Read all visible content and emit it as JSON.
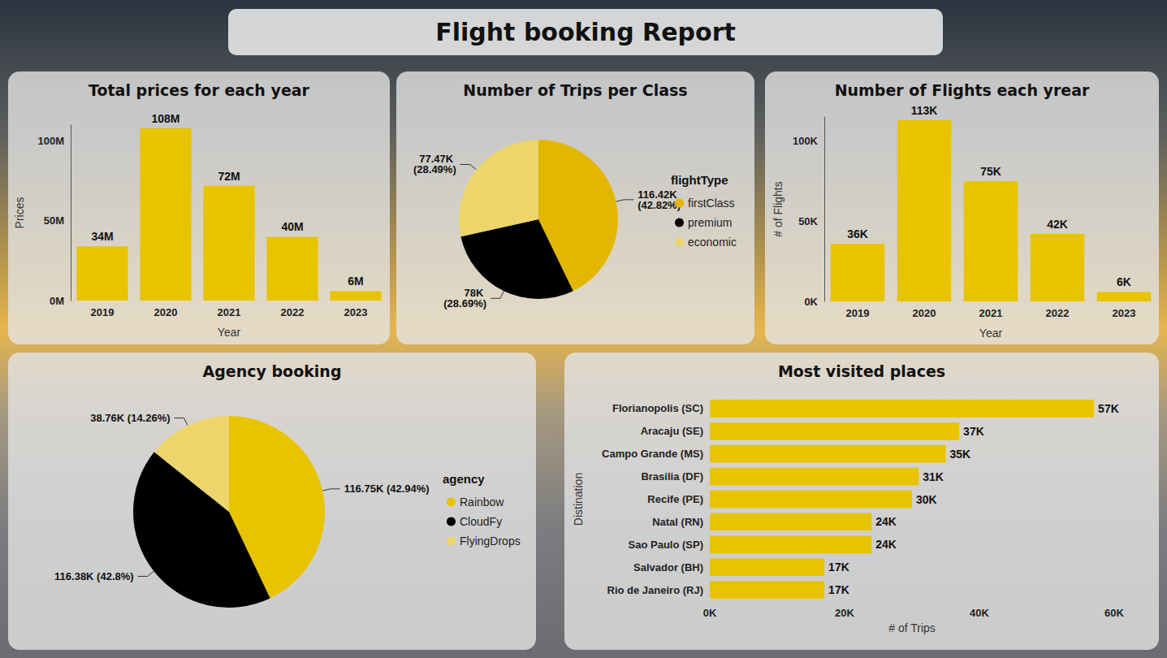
{
  "title": "Flight booking Report",
  "chart_data": [
    {
      "type": "bar",
      "title": "Total prices for each year",
      "x_label": "Year",
      "y_label": "Prices",
      "categories": [
        "2019",
        "2020",
        "2021",
        "2022",
        "2023"
      ],
      "values": [
        34000000,
        108000000,
        72000000,
        40000000,
        6000000
      ],
      "value_labels": [
        "34M",
        "108M",
        "72M",
        "40M",
        "6M"
      ],
      "color": "#E8C300",
      "ylim": [
        0,
        110000000
      ],
      "yticks": [
        {
          "value": 0,
          "label": "0M"
        },
        {
          "value": 50000000,
          "label": "50M"
        },
        {
          "value": 100000000,
          "label": "100M"
        }
      ],
      "grid": false,
      "data_labels": true
    },
    {
      "type": "pie",
      "title": "Number of Trips per Class",
      "legend_title": "flightType",
      "legend": "right",
      "categories": [
        "firstClass",
        "premium",
        "economic"
      ],
      "values": [
        116420,
        78000,
        77470
      ],
      "value_labels": [
        "116.42K (42.82%)",
        "78K (28.69%)",
        "77.47K (28.49%)"
      ],
      "colors": [
        "#E3B700",
        "#000000",
        "#EDD56C"
      ],
      "data_labels": true
    },
    {
      "type": "bar",
      "title": "Number of Flights each yrear",
      "x_label": "Year",
      "y_label": "# of Flights",
      "categories": [
        "2019",
        "2020",
        "2021",
        "2022",
        "2023"
      ],
      "values": [
        36000,
        113000,
        75000,
        42000,
        6000
      ],
      "value_labels": [
        "36K",
        "113K",
        "75K",
        "42K",
        "6K"
      ],
      "color": "#E8C300",
      "ylim": [
        0,
        115000
      ],
      "yticks": [
        {
          "value": 0,
          "label": "0K"
        },
        {
          "value": 50000,
          "label": "50K"
        },
        {
          "value": 100000,
          "label": "100K"
        }
      ],
      "grid": false,
      "data_labels": true
    },
    {
      "type": "pie",
      "title": "Agency booking",
      "legend_title": "agency",
      "legend": "right",
      "categories": [
        "Rainbow",
        "CloudFy",
        "FlyingDrops"
      ],
      "values": [
        116750,
        116380,
        38760
      ],
      "value_labels": [
        "116.75K (42.94%)",
        "116.38K (42.8%)",
        "38.76K (14.26%)"
      ],
      "colors": [
        "#E8C300",
        "#000000",
        "#EDD56C"
      ],
      "data_labels": true
    },
    {
      "type": "bar",
      "title": "Most visited places",
      "orientation": "horizontal",
      "x_label": "# of Trips",
      "y_label": "Distination",
      "categories": [
        "Florianopolis (SC)",
        "Aracaju (SE)",
        "Campo Grande (MS)",
        "Brasilia (DF)",
        "Recife (PE)",
        "Natal (RN)",
        "Sao Paulo (SP)",
        "Salvador (BH)",
        "Rio de Janeiro (RJ)"
      ],
      "values": [
        57000,
        37000,
        35000,
        31000,
        30000,
        24000,
        24000,
        17000,
        17000
      ],
      "value_labels": [
        "57K",
        "37K",
        "35K",
        "31K",
        "30K",
        "24K",
        "24K",
        "17K",
        "17K"
      ],
      "color": "#E8C300",
      "xlim": [
        0,
        60000
      ],
      "xticks": [
        {
          "value": 0,
          "label": "0K"
        },
        {
          "value": 20000,
          "label": "20K"
        },
        {
          "value": 40000,
          "label": "40K"
        },
        {
          "value": 60000,
          "label": "60K"
        }
      ],
      "grid": false,
      "data_labels": true
    }
  ]
}
